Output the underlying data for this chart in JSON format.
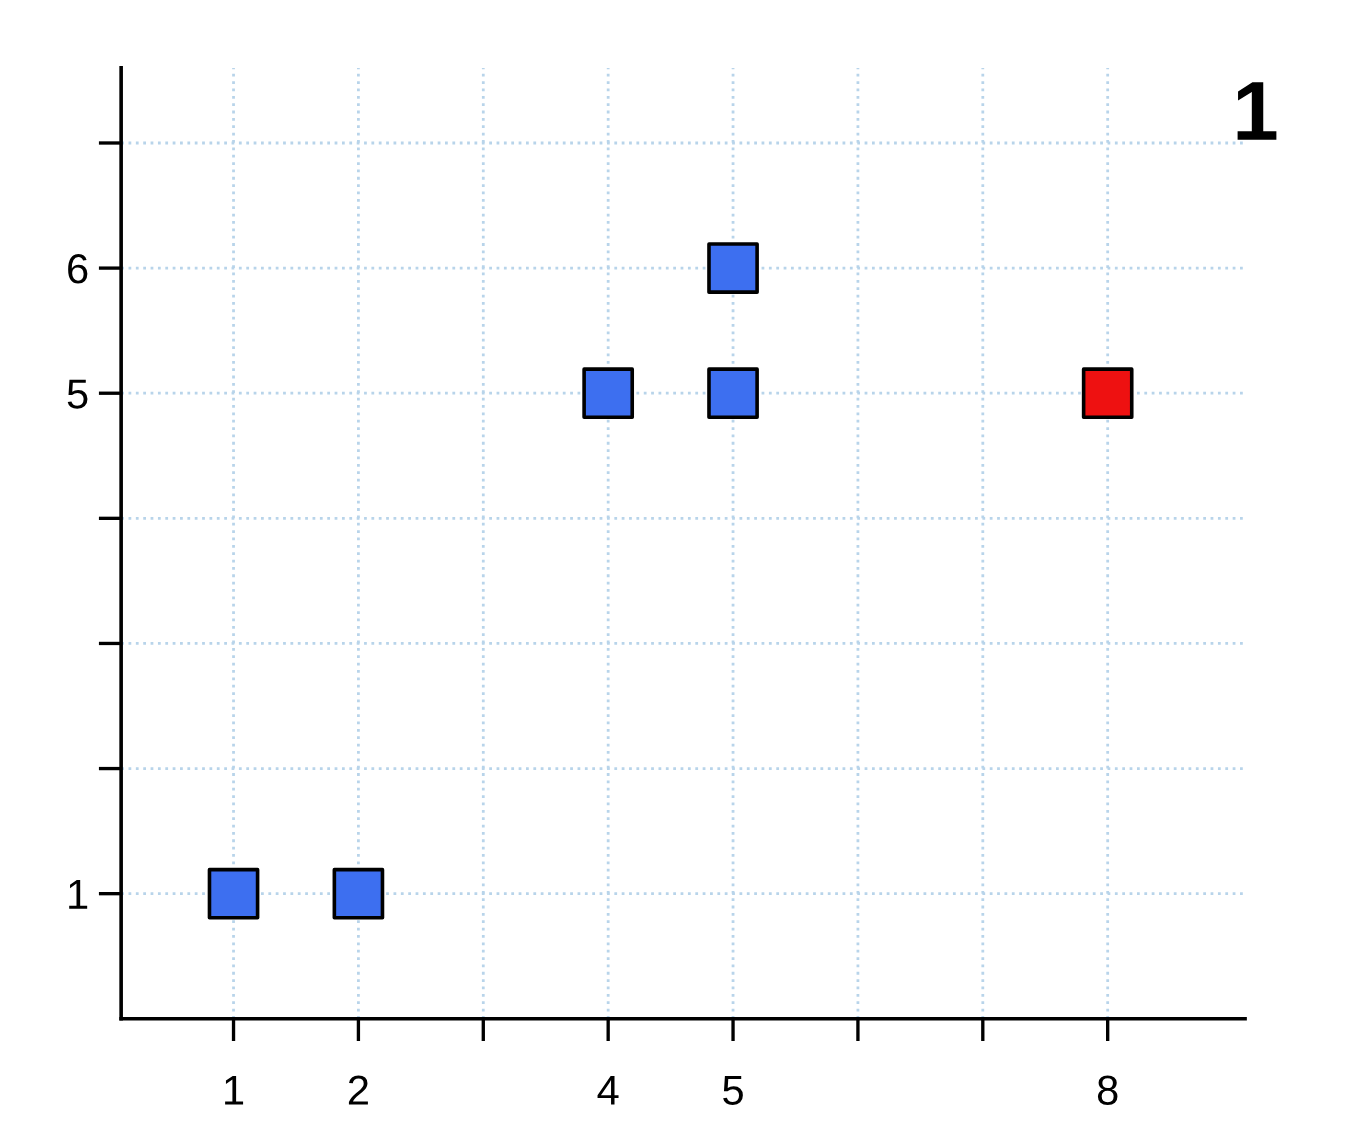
{
  "chart_data": {
    "type": "scatter",
    "x": [
      1,
      2,
      4,
      5,
      5,
      8
    ],
    "values": [
      1,
      1,
      5,
      5,
      6,
      5
    ],
    "colors": [
      "#3d6ff0",
      "#3d6ff0",
      "#3d6ff0",
      "#3d6ff0",
      "#3d6ff0",
      "#ee1111"
    ],
    "marker": "square",
    "xlim": [
      0.1,
      9.1
    ],
    "ylim": [
      0,
      7.6
    ],
    "xticks": [
      1,
      2,
      {
        "value": 3,
        "label": null
      },
      4,
      5,
      {
        "value": 6,
        "label": null
      },
      {
        "value": 7,
        "label": null
      },
      8
    ],
    "yticks": [
      1,
      {
        "value": 2,
        "label": null
      },
      {
        "value": 3,
        "label": null
      },
      {
        "value": 4,
        "label": null
      },
      5,
      6,
      {
        "value": 7,
        "label": null
      }
    ],
    "grid": true,
    "annotations": [
      "1"
    ]
  }
}
